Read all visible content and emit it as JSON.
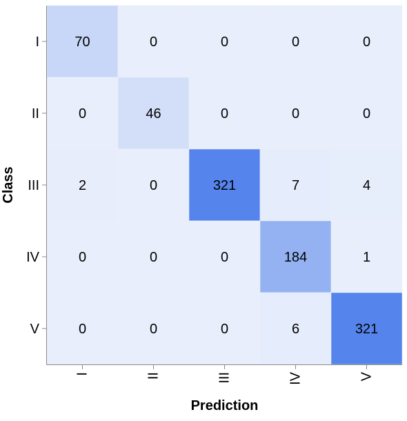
{
  "chart_data": {
    "type": "heatmap",
    "title": "",
    "xlabel": "Prediction",
    "ylabel": "Class",
    "x_categories": [
      "I",
      "II",
      "III",
      "IV",
      "V"
    ],
    "y_categories": [
      "I",
      "II",
      "III",
      "IV",
      "V"
    ],
    "matrix": [
      [
        70,
        0,
        0,
        0,
        0
      ],
      [
        0,
        46,
        0,
        0,
        0
      ],
      [
        2,
        0,
        321,
        7,
        4
      ],
      [
        0,
        0,
        0,
        184,
        1
      ],
      [
        0,
        0,
        0,
        6,
        321
      ]
    ],
    "value_range": [
      0,
      321
    ],
    "colors": {
      "low": "#e8eefb",
      "high": "#5585ec"
    },
    "x_tick_rotation": "vertical",
    "grid": false,
    "legend": "none"
  }
}
